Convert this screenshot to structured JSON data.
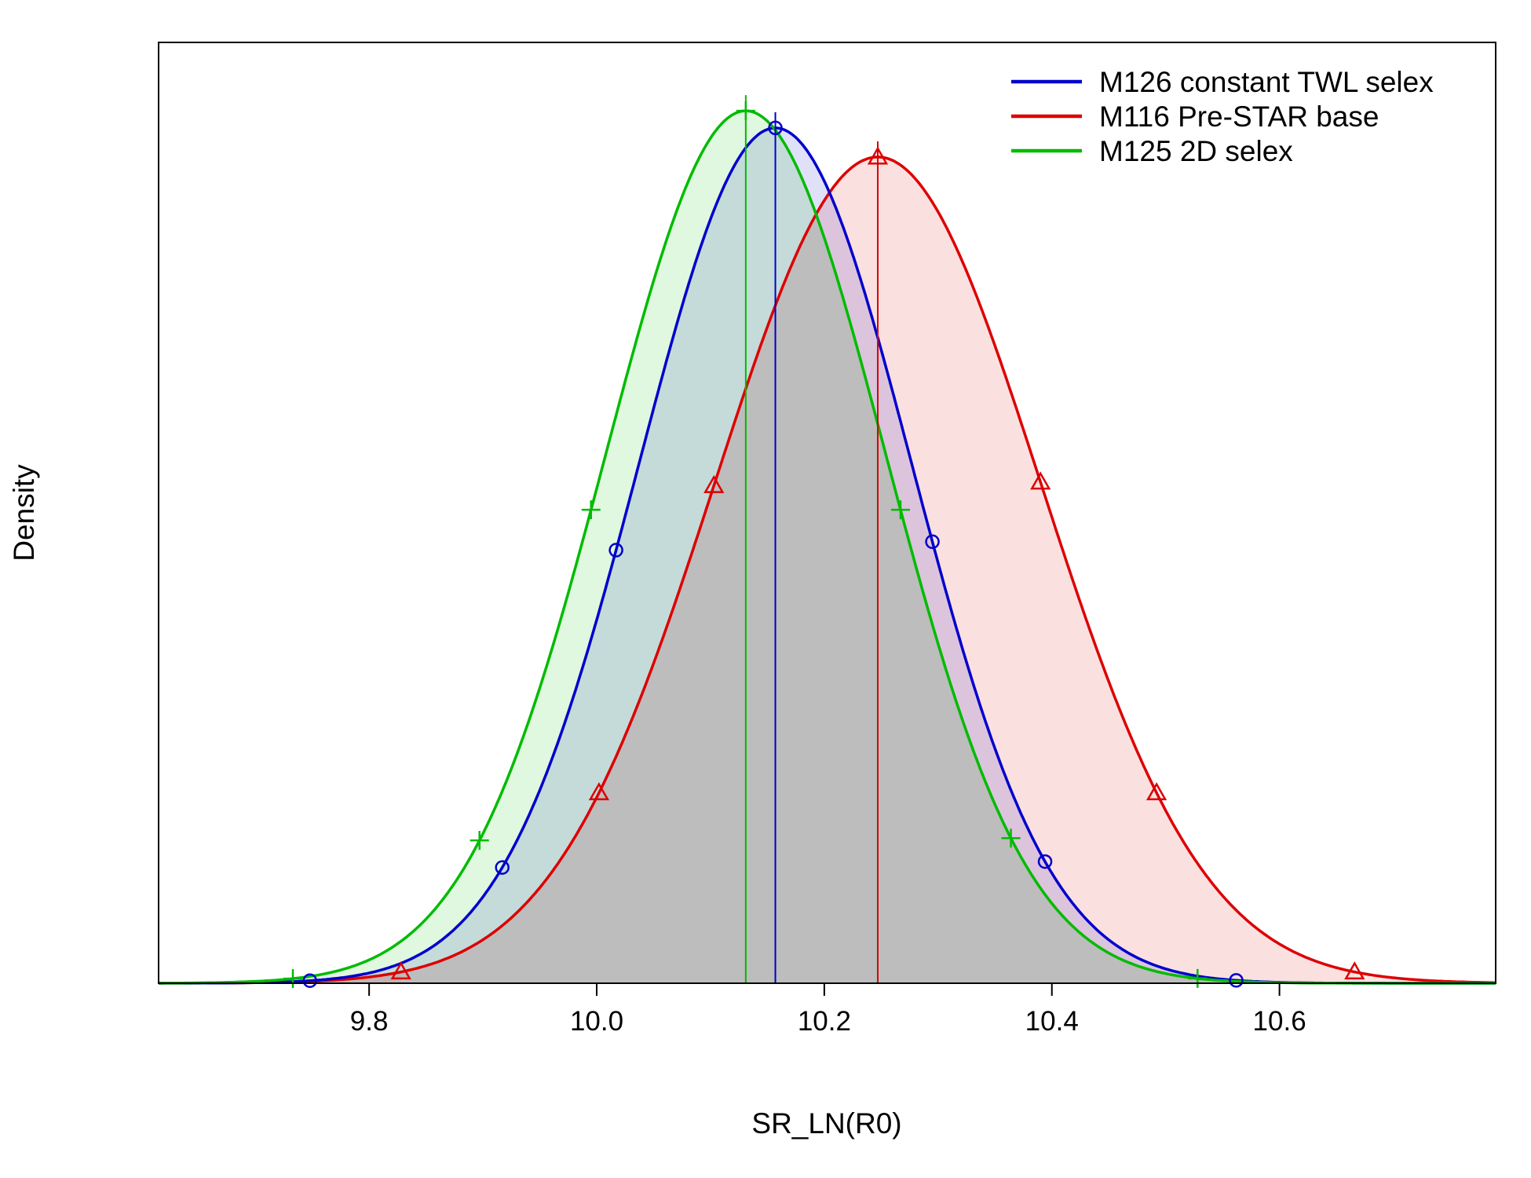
{
  "chart_data": {
    "type": "line",
    "xlabel": "SR_LN(R0)",
    "ylabel": "Density",
    "xlim": [
      9.615,
      10.79
    ],
    "ylim": [
      0,
      1.1
    ],
    "x_ticks": [
      9.8,
      10.0,
      10.2,
      10.4,
      10.6
    ],
    "x_tick_labels": [
      "9.8",
      "10.0",
      "10.2",
      "10.4",
      "10.6"
    ],
    "legend_position": "top-right",
    "series": [
      {
        "name": "M126 constant TWL selex",
        "color": "#0000cc",
        "marker": "circle",
        "mean": 10.157,
        "sd": 0.12,
        "peak_density": 1.0,
        "ci95": [
          9.748,
          10.562
        ],
        "marker_x": [
          9.748,
          9.917,
          10.017,
          10.157,
          10.295,
          10.394,
          10.562
        ]
      },
      {
        "name": "M116 Pre-STAR base",
        "color": "#dd0000",
        "marker": "triangle",
        "mean": 10.247,
        "sd": 0.143,
        "peak_density": 0.966,
        "ci95": [
          9.828,
          10.666
        ],
        "marker_x": [
          9.828,
          10.002,
          10.103,
          10.247,
          10.39,
          10.492,
          10.666
        ]
      },
      {
        "name": "M125 2D selex",
        "color": "#00bb00",
        "marker": "plus",
        "mean": 10.131,
        "sd": 0.123,
        "peak_density": 1.02,
        "ci95": [
          9.733,
          10.528
        ],
        "marker_x": [
          9.733,
          9.897,
          9.995,
          10.131,
          10.267,
          10.364,
          10.528
        ]
      }
    ]
  }
}
